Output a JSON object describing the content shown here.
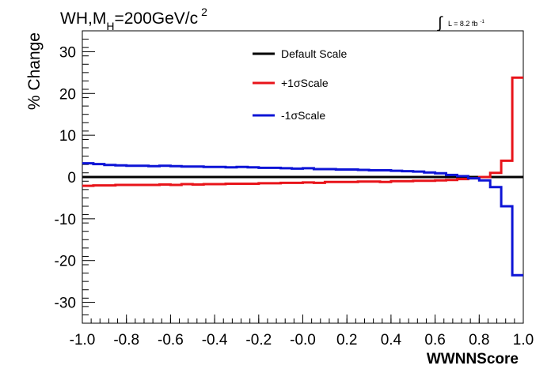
{
  "chart_data": {
    "type": "line",
    "title": "WH,M",
    "title_sub": "H",
    "title_rest": "=200GeV/c",
    "title_sup": "2",
    "lumi": {
      "integral": "∫",
      "label": "L = 8.2 fb",
      "sup": "-1"
    },
    "xlabel": "WWNNScore",
    "ylabel": "% Change",
    "xlim": [
      -1.0,
      1.0
    ],
    "ylim": [
      -35,
      35
    ],
    "x_ticks": [
      "-1.0",
      "-0.8",
      "-0.6",
      "-0.4",
      "-0.2",
      "-0.0",
      "0.2",
      "0.4",
      "0.6",
      "0.8",
      "1.0"
    ],
    "y_ticks": [
      "-30",
      "-20",
      "-10",
      "0",
      "10",
      "20",
      "30"
    ],
    "legend_position": "top-center",
    "series": [
      {
        "name": "Default Scale",
        "color": "#000000",
        "edges": [
          -1.0,
          1.0
        ],
        "values": [
          0
        ]
      },
      {
        "name": "+1σScale",
        "color": "#e8141a",
        "edges": [
          -1.0,
          -0.95,
          -0.9,
          -0.85,
          -0.8,
          -0.75,
          -0.7,
          -0.65,
          -0.6,
          -0.55,
          -0.5,
          -0.45,
          -0.4,
          -0.35,
          -0.3,
          -0.25,
          -0.2,
          -0.15,
          -0.1,
          -0.05,
          0.0,
          0.05,
          0.1,
          0.15,
          0.2,
          0.25,
          0.3,
          0.35,
          0.4,
          0.45,
          0.5,
          0.55,
          0.6,
          0.65,
          0.7,
          0.75,
          0.8,
          0.85,
          0.9,
          0.95,
          1.0
        ],
        "values": [
          -2.1,
          -2.0,
          -2.0,
          -1.9,
          -1.9,
          -1.9,
          -1.9,
          -1.8,
          -1.9,
          -1.7,
          -1.8,
          -1.7,
          -1.7,
          -1.6,
          -1.6,
          -1.6,
          -1.5,
          -1.5,
          -1.4,
          -1.4,
          -1.3,
          -1.4,
          -1.2,
          -1.2,
          -1.2,
          -1.1,
          -1.1,
          -1.2,
          -1.0,
          -1.0,
          -0.9,
          -0.9,
          -0.8,
          -0.7,
          -0.5,
          -0.3,
          0.0,
          1.0,
          3.9,
          23.8
        ]
      },
      {
        "name": "-1σScale",
        "color": "#0d14d6",
        "edges": [
          -1.0,
          -0.95,
          -0.9,
          -0.85,
          -0.8,
          -0.75,
          -0.7,
          -0.65,
          -0.6,
          -0.55,
          -0.5,
          -0.45,
          -0.4,
          -0.35,
          -0.3,
          -0.25,
          -0.2,
          -0.15,
          -0.1,
          -0.05,
          0.0,
          0.05,
          0.1,
          0.15,
          0.2,
          0.25,
          0.3,
          0.35,
          0.4,
          0.45,
          0.5,
          0.55,
          0.6,
          0.65,
          0.7,
          0.75,
          0.8,
          0.85,
          0.9,
          0.95,
          1.0
        ],
        "values": [
          3.3,
          3.1,
          2.9,
          2.8,
          2.7,
          2.7,
          2.6,
          2.7,
          2.6,
          2.5,
          2.5,
          2.4,
          2.4,
          2.3,
          2.4,
          2.3,
          2.2,
          2.2,
          2.1,
          2.0,
          2.1,
          1.9,
          1.9,
          1.8,
          1.8,
          1.7,
          1.6,
          1.6,
          1.5,
          1.4,
          1.3,
          1.1,
          0.9,
          0.5,
          0.2,
          -0.3,
          -0.8,
          -2.4,
          -7.0,
          -23.5
        ]
      }
    ]
  }
}
